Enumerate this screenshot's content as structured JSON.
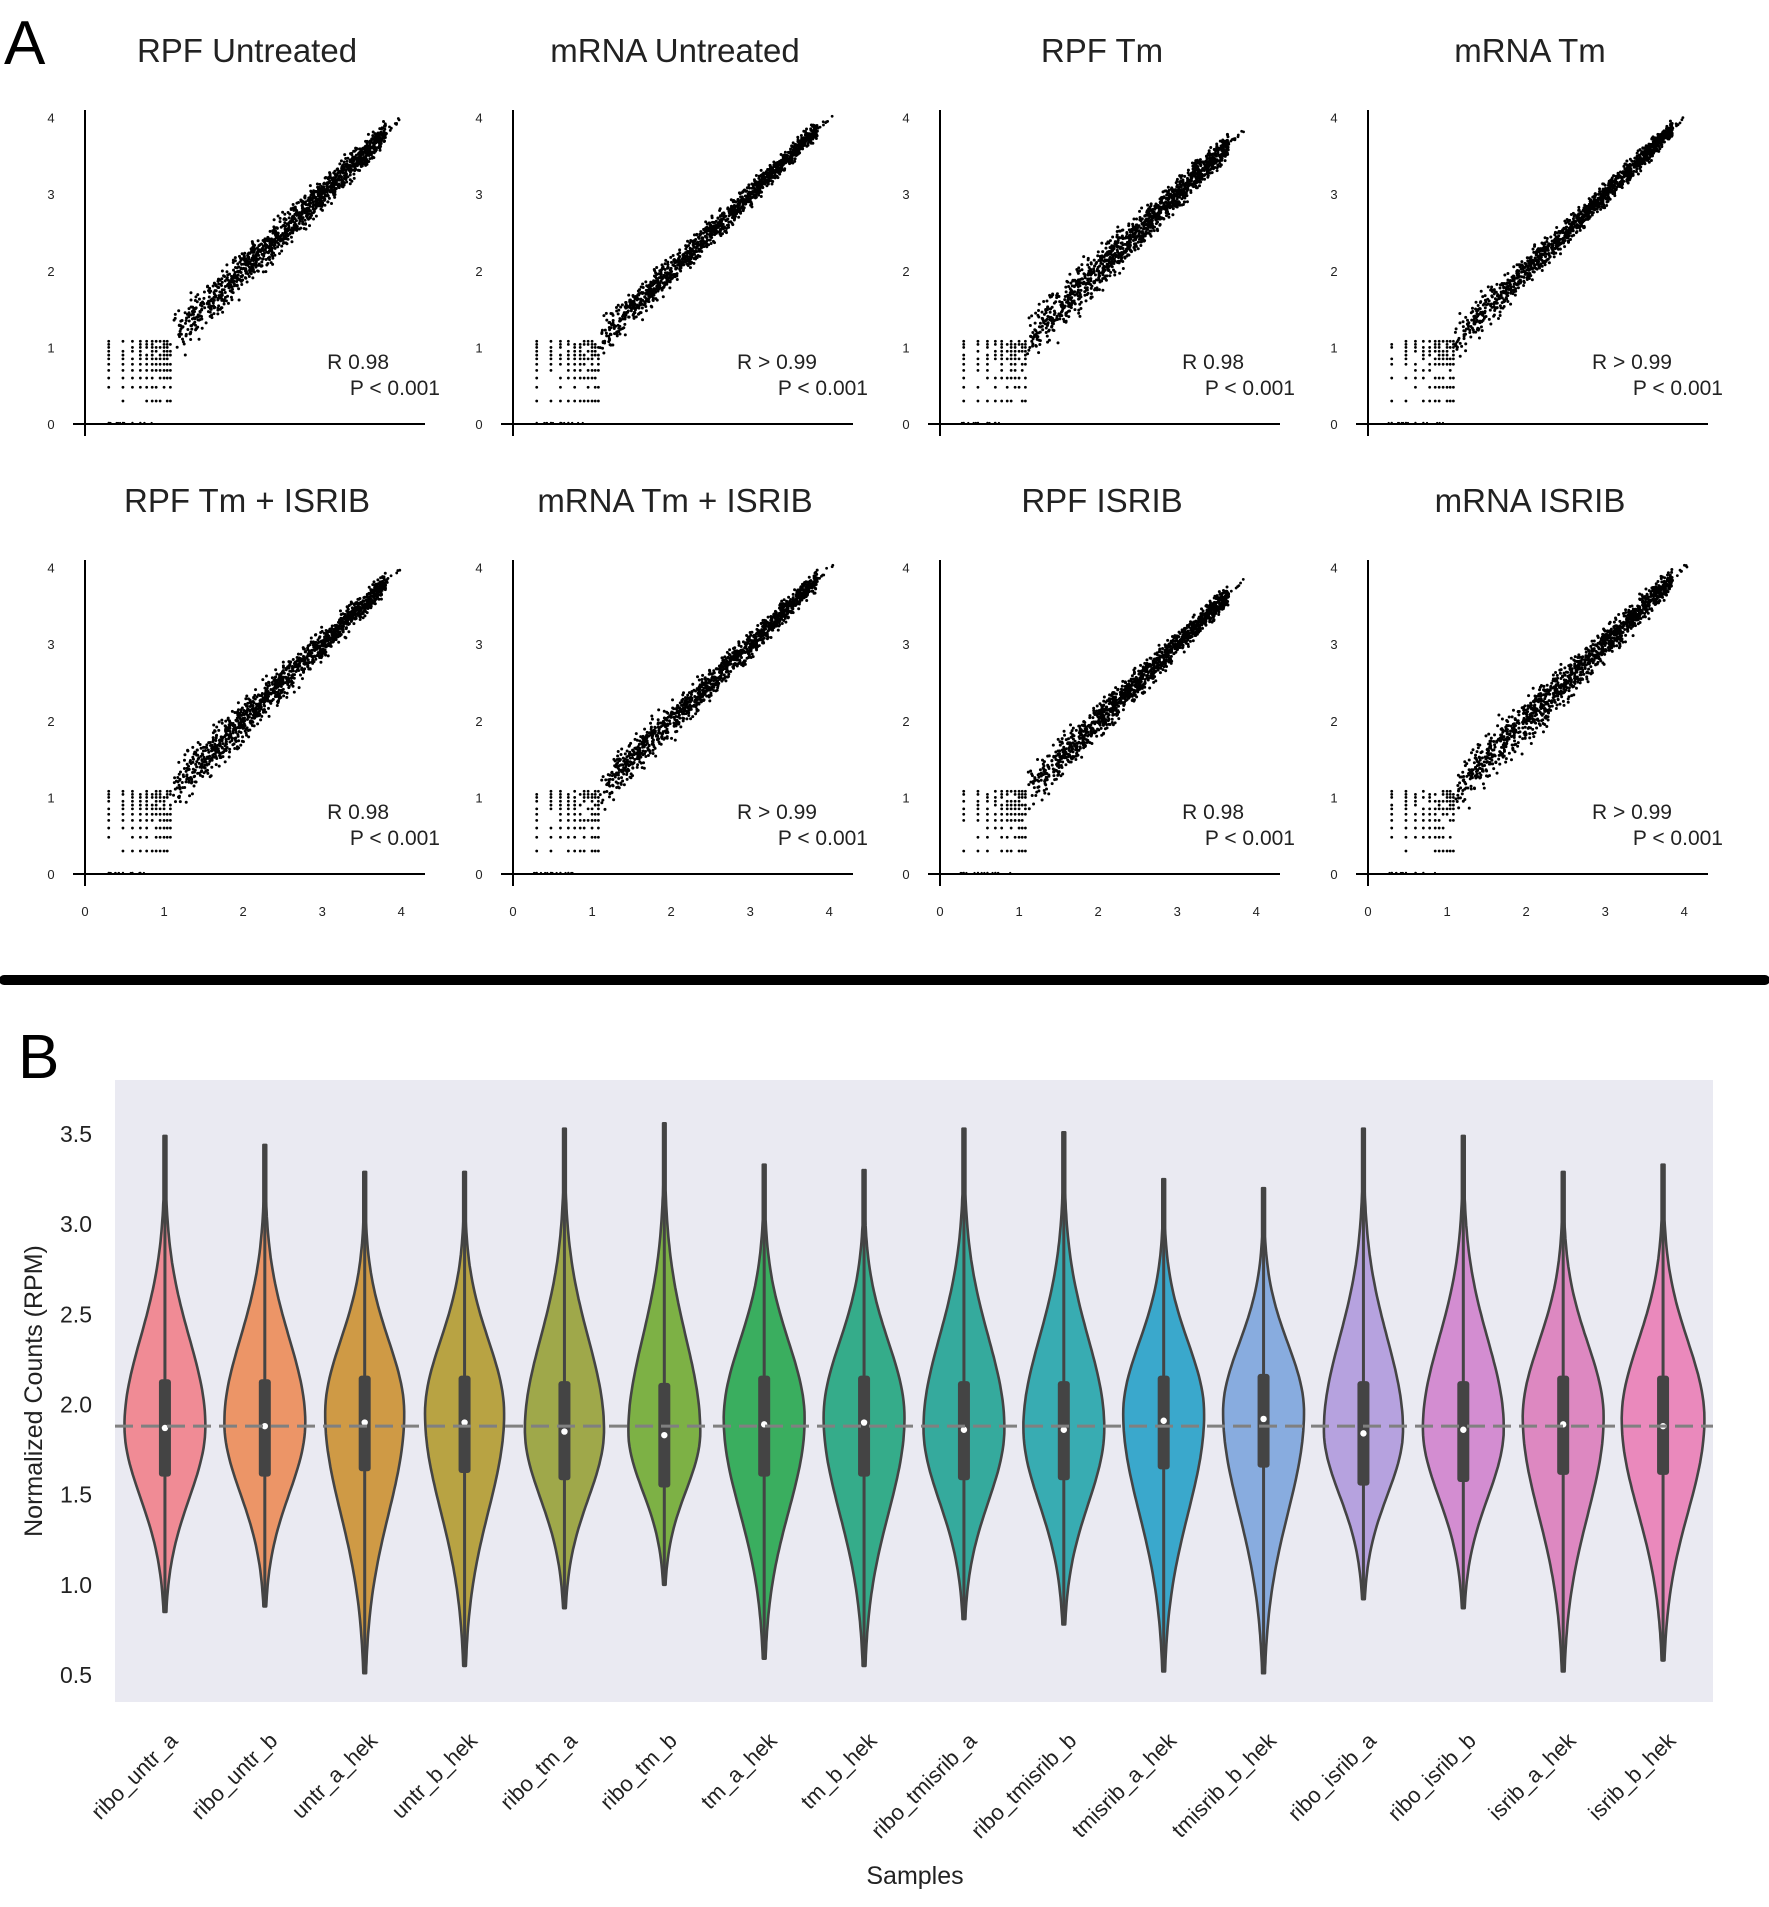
{
  "figure": {
    "panel_a_letter": "A",
    "panel_b_letter": "B"
  },
  "chart_data": [
    {
      "type": "scatter",
      "title": "RPF Untreated",
      "xlim": [
        0,
        4.3
      ],
      "ylim": [
        0,
        4.1
      ],
      "xticks": [
        0,
        1,
        2,
        3,
        4
      ],
      "yticks": [
        0,
        1,
        2,
        3,
        4
      ],
      "show_x_ticks": false,
      "r_text": "R 0.98",
      "p_text": "P < 0.001",
      "trend": {
        "x": [
          0.3,
          4.0
        ],
        "y": [
          0.3,
          4.0
        ]
      },
      "spread": 0.09,
      "dense_start": 1.1,
      "max_x": 4.0,
      "seed": 11
    },
    {
      "type": "scatter",
      "title": "mRNA Untreated",
      "xlim": [
        0,
        4.3
      ],
      "ylim": [
        0,
        4.1
      ],
      "xticks": [
        0,
        1,
        2,
        3,
        4
      ],
      "yticks": [
        0,
        1,
        2,
        3,
        4
      ],
      "show_x_ticks": false,
      "r_text": "R > 0.99",
      "p_text": "P < 0.001",
      "trend": {
        "x": [
          0.3,
          4.05
        ],
        "y": [
          0.3,
          4.05
        ]
      },
      "spread": 0.07,
      "dense_start": 1.1,
      "max_x": 4.05,
      "seed": 23
    },
    {
      "type": "scatter",
      "title": "RPF Tm",
      "xlim": [
        0,
        4.3
      ],
      "ylim": [
        0,
        4.1
      ],
      "xticks": [
        0,
        1,
        2,
        3,
        4
      ],
      "yticks": [
        0,
        1,
        2,
        3,
        4
      ],
      "show_x_ticks": false,
      "r_text": "R 0.98",
      "p_text": "P < 0.001",
      "trend": {
        "x": [
          0.3,
          3.85
        ],
        "y": [
          0.3,
          3.85
        ]
      },
      "spread": 0.1,
      "dense_start": 1.1,
      "max_x": 3.85,
      "seed": 37
    },
    {
      "type": "scatter",
      "title": "mRNA Tm",
      "xlim": [
        0,
        4.3
      ],
      "ylim": [
        0,
        4.1
      ],
      "xticks": [
        0,
        1,
        2,
        3,
        4
      ],
      "yticks": [
        0,
        1,
        2,
        3,
        4
      ],
      "show_x_ticks": false,
      "r_text": "R > 0.99",
      "p_text": "P < 0.001",
      "trend": {
        "x": [
          0.3,
          4.05
        ],
        "y": [
          0.3,
          4.05
        ]
      },
      "spread": 0.07,
      "dense_start": 1.1,
      "max_x": 4.05,
      "seed": 41
    },
    {
      "type": "scatter",
      "title": "RPF Tm + ISRIB",
      "xlim": [
        0,
        4.3
      ],
      "ylim": [
        0,
        4.1
      ],
      "xticks": [
        0,
        1,
        2,
        3,
        4
      ],
      "yticks": [
        0,
        1,
        2,
        3,
        4
      ],
      "show_x_ticks": true,
      "r_text": "R 0.98",
      "p_text": "P < 0.001",
      "trend": {
        "x": [
          0.3,
          4.0
        ],
        "y": [
          0.3,
          4.0
        ]
      },
      "spread": 0.09,
      "dense_start": 1.1,
      "max_x": 4.0,
      "seed": 53
    },
    {
      "type": "scatter",
      "title": "mRNA Tm + ISRIB",
      "xlim": [
        0,
        4.3
      ],
      "ylim": [
        0,
        4.1
      ],
      "xticks": [
        0,
        1,
        2,
        3,
        4
      ],
      "yticks": [
        0,
        1,
        2,
        3,
        4
      ],
      "show_x_ticks": true,
      "r_text": "R > 0.99",
      "p_text": "P < 0.001",
      "trend": {
        "x": [
          0.3,
          4.05
        ],
        "y": [
          0.3,
          4.05
        ]
      },
      "spread": 0.08,
      "dense_start": 1.1,
      "max_x": 4.05,
      "seed": 67
    },
    {
      "type": "scatter",
      "title": "RPF ISRIB",
      "xlim": [
        0,
        4.3
      ],
      "ylim": [
        0,
        4.1
      ],
      "xticks": [
        0,
        1,
        2,
        3,
        4
      ],
      "yticks": [
        0,
        1,
        2,
        3,
        4
      ],
      "show_x_ticks": true,
      "r_text": "R 0.98",
      "p_text": "P < 0.001",
      "trend": {
        "x": [
          0.3,
          3.85
        ],
        "y": [
          0.3,
          3.85
        ]
      },
      "spread": 0.08,
      "dense_start": 1.1,
      "max_x": 3.85,
      "seed": 79
    },
    {
      "type": "scatter",
      "title": "mRNA ISRIB",
      "xlim": [
        0,
        4.3
      ],
      "ylim": [
        0,
        4.1
      ],
      "xticks": [
        0,
        1,
        2,
        3,
        4
      ],
      "yticks": [
        0,
        1,
        2,
        3,
        4
      ],
      "show_x_ticks": true,
      "r_text": "R > 0.99",
      "p_text": "P < 0.001",
      "trend": {
        "x": [
          0.3,
          4.05
        ],
        "y": [
          0.3,
          4.05
        ]
      },
      "spread": 0.1,
      "dense_start": 1.1,
      "max_x": 4.05,
      "seed": 97
    },
    {
      "type": "violin",
      "xlabel": "Samples",
      "ylabel": "Normalized Counts (RPM)",
      "ylim": [
        0.35,
        3.8
      ],
      "yticks": [
        0.5,
        1.0,
        1.5,
        2.0,
        2.5,
        3.0,
        3.5
      ],
      "ytick_labels": [
        "0.5",
        "1.0",
        "1.5",
        "2.0",
        "2.5",
        "3.0",
        "3.5"
      ],
      "background": "#eaeaf2",
      "reference_line": 1.88,
      "categories": [
        "ribo_untr_a",
        "ribo_untr_b",
        "untr_a_hek",
        "untr_b_hek",
        "ribo_tm_a",
        "ribo_tm_b",
        "tm_a_hek",
        "tm_b_hek",
        "ribo_tmisrib_a",
        "ribo_tmisrib_b",
        "tmisrib_a_hek",
        "tmisrib_b_hek",
        "ribo_isrib_a",
        "ribo_isrib_b",
        "isrib_a_hek",
        "isrib_b_hek"
      ],
      "colors": [
        "#f08b95",
        "#ec9567",
        "#cf9a45",
        "#b8a343",
        "#9fa84a",
        "#7db145",
        "#3aae5f",
        "#35ac8a",
        "#35aa9d",
        "#38acb2",
        "#3aa8cc",
        "#88acdf",
        "#b6a2df",
        "#d38dd1",
        "#dd88c1",
        "#ea89bc"
      ],
      "min": [
        0.85,
        0.88,
        0.51,
        0.55,
        0.87,
        1.0,
        0.59,
        0.55,
        0.81,
        0.78,
        0.52,
        0.51,
        0.92,
        0.87,
        0.52,
        0.58
      ],
      "max": [
        3.49,
        3.44,
        3.29,
        3.29,
        3.53,
        3.56,
        3.33,
        3.3,
        3.53,
        3.51,
        3.25,
        3.2,
        3.53,
        3.49,
        3.29,
        3.33
      ],
      "q1": [
        1.6,
        1.6,
        1.63,
        1.62,
        1.58,
        1.54,
        1.6,
        1.6,
        1.58,
        1.58,
        1.64,
        1.65,
        1.55,
        1.57,
        1.61,
        1.61
      ],
      "median": [
        1.87,
        1.88,
        1.9,
        1.9,
        1.85,
        1.83,
        1.89,
        1.9,
        1.86,
        1.86,
        1.91,
        1.92,
        1.84,
        1.86,
        1.89,
        1.88
      ],
      "q3": [
        2.14,
        2.14,
        2.16,
        2.16,
        2.13,
        2.12,
        2.16,
        2.16,
        2.13,
        2.13,
        2.16,
        2.17,
        2.13,
        2.13,
        2.16,
        2.16
      ],
      "mode": [
        1.88,
        1.9,
        1.95,
        1.95,
        1.86,
        1.85,
        1.92,
        1.93,
        1.87,
        1.87,
        1.95,
        1.96,
        1.86,
        1.87,
        1.93,
        1.92
      ],
      "width": [
        0.9,
        0.9,
        0.88,
        0.88,
        0.88,
        0.8,
        0.9,
        0.9,
        0.9,
        0.9,
        0.9,
        0.9,
        0.88,
        0.9,
        0.9,
        0.92
      ]
    }
  ]
}
